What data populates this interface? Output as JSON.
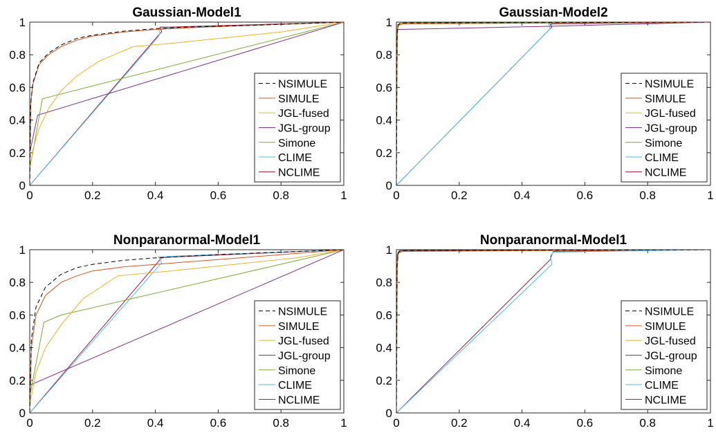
{
  "colors": {
    "NSIMULE": "#000000",
    "SIMULE": "#d95319",
    "JGL-fused": "#edb120",
    "JGL-group": "#7e2f8e",
    "Simone": "#77ac30",
    "CLIME": "#4dbeee",
    "NCLIME": "#a2142f"
  },
  "chart_data": [
    {
      "type": "line",
      "title": "Gaussian-Model1",
      "xlabel": "",
      "ylabel": "",
      "xlim": [
        0,
        1
      ],
      "ylim": [
        0,
        1
      ],
      "xticks": [
        "0",
        "0.2",
        "0.4",
        "0.6",
        "0.8",
        "1"
      ],
      "yticks": [
        "0",
        "0.2",
        "0.4",
        "0.6",
        "0.8",
        "1"
      ],
      "legend_position": "lower-right",
      "series": [
        {
          "name": "NSIMULE",
          "style": "dashed",
          "points": [
            [
              0,
              0
            ],
            [
              0.003,
              0.5
            ],
            [
              0.01,
              0.63
            ],
            [
              0.03,
              0.75
            ],
            [
              0.06,
              0.81
            ],
            [
              0.1,
              0.86
            ],
            [
              0.15,
              0.9
            ],
            [
              0.2,
              0.92
            ],
            [
              0.3,
              0.945
            ],
            [
              0.4,
              0.96
            ],
            [
              0.5,
              0.97
            ],
            [
              0.7,
              0.98
            ],
            [
              1,
              1
            ]
          ]
        },
        {
          "name": "SIMULE",
          "style": "solid",
          "points": [
            [
              0,
              0
            ],
            [
              0.003,
              0.5
            ],
            [
              0.01,
              0.62
            ],
            [
              0.03,
              0.74
            ],
            [
              0.06,
              0.8
            ],
            [
              0.1,
              0.85
            ],
            [
              0.15,
              0.89
            ],
            [
              0.2,
              0.915
            ],
            [
              0.3,
              0.94
            ],
            [
              0.4,
              0.955
            ],
            [
              0.5,
              0.965
            ],
            [
              0.7,
              0.98
            ],
            [
              1,
              1
            ]
          ]
        },
        {
          "name": "JGL-fused",
          "style": "solid",
          "points": [
            [
              0,
              0.1
            ],
            [
              0.01,
              0.22
            ],
            [
              0.03,
              0.35
            ],
            [
              0.06,
              0.47
            ],
            [
              0.1,
              0.58
            ],
            [
              0.15,
              0.67
            ],
            [
              0.22,
              0.76
            ],
            [
              0.33,
              0.85
            ],
            [
              0.45,
              0.87
            ],
            [
              0.6,
              0.9
            ],
            [
              0.8,
              0.94
            ],
            [
              1,
              1
            ]
          ]
        },
        {
          "name": "JGL-group",
          "style": "solid",
          "points": [
            [
              0,
              0.2
            ],
            [
              0.025,
              0.43
            ],
            [
              1,
              1
            ]
          ]
        },
        {
          "name": "Simone",
          "style": "solid",
          "points": [
            [
              0,
              0.1
            ],
            [
              0.04,
              0.53
            ],
            [
              0.1,
              0.56
            ],
            [
              1,
              1
            ]
          ]
        },
        {
          "name": "CLIME",
          "style": "solid",
          "points": [
            [
              0,
              0
            ],
            [
              0.405,
              0.9
            ],
            [
              0.415,
              0.93
            ],
            [
              0.41,
              0.96
            ],
            [
              0.45,
              0.965
            ],
            [
              1,
              1
            ]
          ]
        },
        {
          "name": "NCLIME",
          "style": "solid",
          "points": [
            [
              0,
              0
            ],
            [
              0.41,
              0.92
            ],
            [
              0.42,
              0.94
            ],
            [
              0.415,
              0.97
            ],
            [
              0.45,
              0.97
            ],
            [
              1,
              1
            ]
          ]
        }
      ]
    },
    {
      "type": "line",
      "title": "Gaussian-Model2",
      "xlabel": "",
      "ylabel": "",
      "xlim": [
        0,
        1
      ],
      "ylim": [
        0,
        1
      ],
      "xticks": [
        "0",
        "0.2",
        "0.4",
        "0.6",
        "0.8",
        "1"
      ],
      "yticks": [
        "0",
        "0.2",
        "0.4",
        "0.6",
        "0.8",
        "1"
      ],
      "legend_position": "lower-right",
      "series": [
        {
          "name": "NSIMULE",
          "style": "dashed",
          "points": [
            [
              0,
              0
            ],
            [
              0.002,
              0.9
            ],
            [
              0.005,
              0.985
            ],
            [
              0.02,
              0.995
            ],
            [
              1,
              1
            ]
          ]
        },
        {
          "name": "SIMULE",
          "style": "solid",
          "points": [
            [
              0,
              0
            ],
            [
              0.002,
              0.88
            ],
            [
              0.005,
              0.98
            ],
            [
              0.02,
              0.99
            ],
            [
              1,
              1
            ]
          ]
        },
        {
          "name": "JGL-fused",
          "style": "solid",
          "points": [
            [
              0,
              0
            ],
            [
              0.003,
              0.95
            ],
            [
              0.01,
              0.99
            ],
            [
              1,
              1
            ]
          ]
        },
        {
          "name": "JGL-group",
          "style": "solid",
          "points": [
            [
              0,
              0.2
            ],
            [
              0.003,
              0.955
            ],
            [
              0.5,
              0.975
            ],
            [
              1,
              1
            ]
          ]
        },
        {
          "name": "Simone",
          "style": "solid",
          "points": [
            [
              0,
              0
            ],
            [
              0.002,
              0.97
            ],
            [
              0.01,
              0.995
            ],
            [
              1,
              1
            ]
          ]
        },
        {
          "name": "CLIME",
          "style": "solid",
          "points": [
            [
              0,
              0
            ],
            [
              0.49,
              0.96
            ],
            [
              0.485,
              0.99
            ],
            [
              0.5,
              0.995
            ],
            [
              1,
              1
            ]
          ]
        },
        {
          "name": "NCLIME",
          "style": "solid",
          "points": [
            [
              0,
              0
            ],
            [
              0.495,
              0.97
            ],
            [
              0.49,
              0.985
            ],
            [
              0.5,
              0.99
            ],
            [
              1,
              1
            ]
          ]
        }
      ]
    },
    {
      "type": "line",
      "title": "Nonparanormal-Model1",
      "xlabel": "",
      "ylabel": "",
      "xlim": [
        0,
        1
      ],
      "ylim": [
        0,
        1
      ],
      "xticks": [
        "0",
        "0.2",
        "0.4",
        "0.6",
        "0.8",
        "1"
      ],
      "yticks": [
        "0",
        "0.2",
        "0.4",
        "0.6",
        "0.8",
        "1"
      ],
      "legend_position": "lower-right",
      "series": [
        {
          "name": "NSIMULE",
          "style": "dashed",
          "points": [
            [
              0,
              0
            ],
            [
              0.005,
              0.45
            ],
            [
              0.02,
              0.65
            ],
            [
              0.05,
              0.77
            ],
            [
              0.1,
              0.85
            ],
            [
              0.15,
              0.89
            ],
            [
              0.2,
              0.91
            ],
            [
              0.3,
              0.935
            ],
            [
              0.4,
              0.95
            ],
            [
              0.6,
              0.97
            ],
            [
              0.8,
              0.985
            ],
            [
              1,
              1
            ]
          ]
        },
        {
          "name": "SIMULE",
          "style": "solid",
          "points": [
            [
              0,
              0
            ],
            [
              0.005,
              0.4
            ],
            [
              0.02,
              0.6
            ],
            [
              0.05,
              0.72
            ],
            [
              0.1,
              0.8
            ],
            [
              0.15,
              0.84
            ],
            [
              0.2,
              0.87
            ],
            [
              0.3,
              0.895
            ],
            [
              0.4,
              0.91
            ],
            [
              0.6,
              0.94
            ],
            [
              0.8,
              0.97
            ],
            [
              1,
              1
            ]
          ]
        },
        {
          "name": "JGL-fused",
          "style": "solid",
          "points": [
            [
              0,
              0.05
            ],
            [
              0.02,
              0.25
            ],
            [
              0.05,
              0.4
            ],
            [
              0.1,
              0.54
            ],
            [
              0.17,
              0.7
            ],
            [
              0.28,
              0.84
            ],
            [
              0.45,
              0.87
            ],
            [
              0.65,
              0.91
            ],
            [
              0.85,
              0.95
            ],
            [
              1,
              1
            ]
          ]
        },
        {
          "name": "JGL-group",
          "style": "solid",
          "points": [
            [
              0,
              0.17
            ],
            [
              1,
              1
            ]
          ]
        },
        {
          "name": "Simone",
          "style": "solid",
          "points": [
            [
              0,
              0.1
            ],
            [
              0.045,
              0.555
            ],
            [
              0.1,
              0.6
            ],
            [
              1,
              1
            ]
          ]
        },
        {
          "name": "CLIME",
          "style": "solid",
          "points": [
            [
              0,
              0
            ],
            [
              0.42,
              0.92
            ],
            [
              0.41,
              0.955
            ],
            [
              0.45,
              0.96
            ],
            [
              1,
              1
            ]
          ]
        },
        {
          "name": "NCLIME",
          "style": "solid",
          "points": [
            [
              0,
              0
            ],
            [
              0.415,
              0.94
            ],
            [
              0.42,
              0.95
            ],
            [
              0.45,
              0.955
            ],
            [
              1,
              1
            ]
          ]
        }
      ]
    },
    {
      "type": "line",
      "title": "Nonparanormal-Model1",
      "xlabel": "",
      "ylabel": "",
      "xlim": [
        0,
        1
      ],
      "ylim": [
        0,
        1
      ],
      "xticks": [
        "0",
        "0.2",
        "0.4",
        "0.6",
        "0.8",
        "1"
      ],
      "yticks": [
        "0",
        "0.2",
        "0.4",
        "0.6",
        "0.8",
        "1"
      ],
      "legend_position": "lower-right",
      "series": [
        {
          "name": "NSIMULE",
          "style": "dashed",
          "points": [
            [
              0,
              0
            ],
            [
              0.002,
              0.9
            ],
            [
              0.006,
              0.985
            ],
            [
              0.02,
              0.995
            ],
            [
              1,
              1
            ]
          ]
        },
        {
          "name": "SIMULE",
          "style": "solid",
          "points": [
            [
              0,
              0
            ],
            [
              0.002,
              0.88
            ],
            [
              0.006,
              0.98
            ],
            [
              0.02,
              0.99
            ],
            [
              1,
              1
            ]
          ]
        },
        {
          "name": "JGL-fused",
          "style": "solid",
          "points": [
            [
              0,
              0
            ],
            [
              0.003,
              0.95
            ],
            [
              0.01,
              0.99
            ],
            [
              1,
              1
            ]
          ]
        },
        {
          "name": "JGL-group",
          "style": "solid",
          "points": [
            [
              0,
              0
            ],
            [
              0.003,
              0.97
            ],
            [
              0.01,
              0.995
            ],
            [
              1,
              1
            ]
          ]
        },
        {
          "name": "Simone",
          "style": "solid",
          "points": [
            [
              0,
              0
            ],
            [
              0.002,
              0.97
            ],
            [
              0.01,
              0.995
            ],
            [
              1,
              1
            ]
          ]
        },
        {
          "name": "CLIME",
          "style": "solid",
          "points": [
            [
              0,
              0
            ],
            [
              0.495,
              0.91
            ],
            [
              0.49,
              0.96
            ],
            [
              0.5,
              0.985
            ],
            [
              1,
              1
            ]
          ]
        },
        {
          "name": "NCLIME",
          "style": "solid",
          "points": [
            [
              0,
              0
            ],
            [
              0.49,
              0.94
            ],
            [
              0.495,
              0.97
            ],
            [
              0.5,
              0.99
            ],
            [
              1,
              1
            ]
          ]
        }
      ]
    }
  ]
}
